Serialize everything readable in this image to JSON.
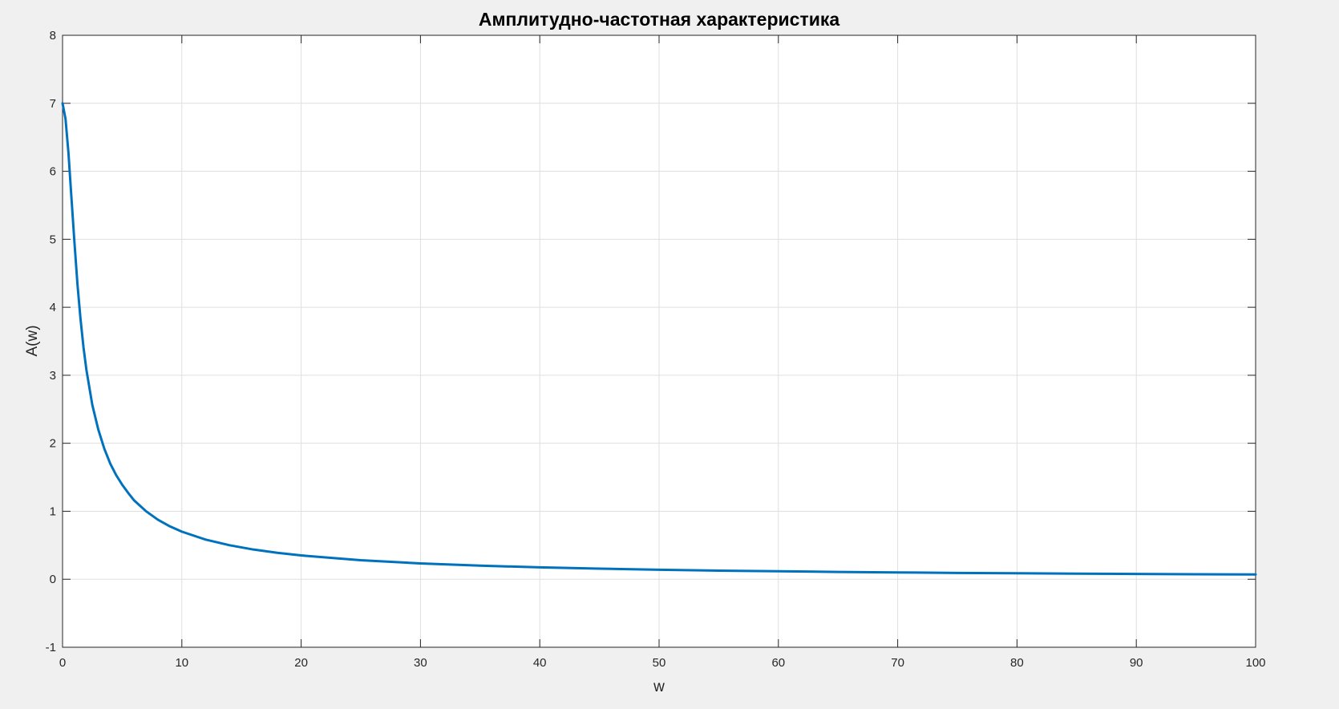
{
  "chart_data": {
    "type": "line",
    "title": "Амплитудно-частотная характеристика",
    "xlabel": "w",
    "ylabel": "A(w)",
    "xlim": [
      0,
      100
    ],
    "ylim": [
      -1,
      8
    ],
    "xticks": [
      0,
      10,
      20,
      30,
      40,
      50,
      60,
      70,
      80,
      90,
      100
    ],
    "yticks": [
      -1,
      0,
      1,
      2,
      3,
      4,
      5,
      6,
      7,
      8
    ],
    "grid": true,
    "legend": "none",
    "series": [
      {
        "color": "#0072bd",
        "x": [
          0,
          0.25,
          0.5,
          0.75,
          1,
          1.25,
          1.5,
          1.75,
          2,
          2.5,
          3,
          3.5,
          4,
          4.5,
          5,
          5.5,
          6,
          7,
          8,
          9,
          10,
          12,
          14,
          16,
          18,
          20,
          25,
          30,
          35,
          40,
          45,
          50,
          55,
          60,
          65,
          70,
          75,
          80,
          85,
          90,
          95,
          100
        ],
        "y": [
          7.0,
          6.77,
          6.26,
          5.6,
          4.95,
          4.34,
          3.84,
          3.42,
          3.08,
          2.56,
          2.2,
          1.92,
          1.7,
          1.53,
          1.39,
          1.27,
          1.16,
          1.0,
          0.875,
          0.778,
          0.7,
          0.583,
          0.5,
          0.437,
          0.389,
          0.35,
          0.28,
          0.233,
          0.2,
          0.175,
          0.156,
          0.14,
          0.127,
          0.117,
          0.108,
          0.1,
          0.093,
          0.0875,
          0.082,
          0.078,
          0.074,
          0.07
        ]
      }
    ]
  }
}
